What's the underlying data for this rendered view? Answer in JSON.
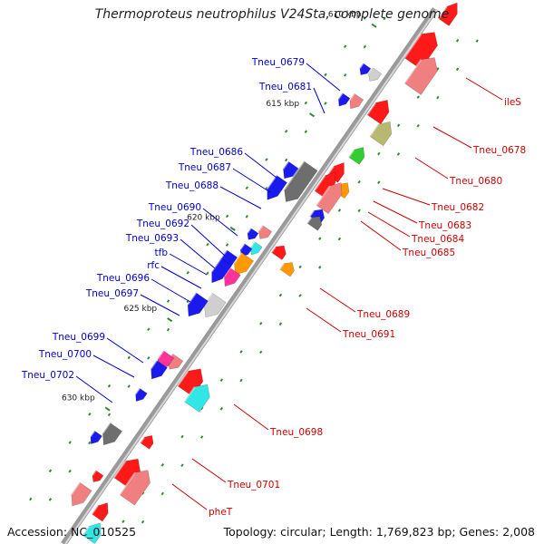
{
  "title": "Thermoproteus neutrophilus V24Sta, complete genome",
  "footer": {
    "accession": "Accession: NC_010525",
    "topology": "Topology: circular; Length: 1,769,823 bp; Genes: 2,008"
  },
  "colors": {
    "backbone": "#8a8a8a",
    "label_left": "#0000cc",
    "label_right": "#cc0000",
    "tick": "#2e8b2e",
    "red": "#ff1a1a",
    "blue": "#1a1aee",
    "salmon": "#f08080",
    "gray": "#6e6e6e",
    "lightgray": "#cfcfcf",
    "pink": "#ff3399",
    "orange": "#ff9900",
    "green": "#33cc33",
    "olive": "#b8b870",
    "cyan": "#33e6e6"
  },
  "kbp_markers": [
    "610 kbp",
    "615 kbp",
    "620 kbp",
    "625 kbp",
    "630 kbp"
  ],
  "labels_left": [
    "Tneu_0679",
    "Tneu_0681",
    "Tneu_0686",
    "Tneu_0687",
    "Tneu_0688",
    "Tneu_0690",
    "Tneu_0692",
    "Tneu_0693",
    "tfb",
    "rfc",
    "Tneu_0696",
    "Tneu_0697",
    "Tneu_0699",
    "Tneu_0700",
    "Tneu_0702"
  ],
  "labels_right": [
    "ileS",
    "Tneu_0678",
    "Tneu_0680",
    "Tneu_0682",
    "Tneu_0683",
    "Tneu_0684",
    "Tneu_0685",
    "Tneu_0689",
    "Tneu_0691",
    "Tneu_0698",
    "Tneu_0701",
    "pheT"
  ],
  "genes_plus": [
    {
      "color": "red"
    },
    {
      "color": "red"
    },
    {
      "color": "salmon"
    },
    {
      "color": "red"
    },
    {
      "color": "olive"
    },
    {
      "color": "green"
    },
    {
      "color": "red"
    },
    {
      "color": "orange"
    },
    {
      "color": "red"
    },
    {
      "color": "salmon"
    },
    {
      "color": "blue"
    },
    {
      "color": "gray"
    },
    {
      "color": "red"
    },
    {
      "color": "orange"
    },
    {
      "color": "red"
    },
    {
      "color": "cyan"
    },
    {
      "color": "red"
    },
    {
      "color": "red"
    },
    {
      "color": "salmon"
    },
    {
      "color": "red"
    },
    {
      "color": "cyan"
    }
  ],
  "genes_minus": [
    {
      "color": "lightgray"
    },
    {
      "color": "blue"
    },
    {
      "color": "salmon"
    },
    {
      "color": "blue"
    },
    {
      "color": "pink"
    },
    {
      "color": "blue"
    },
    {
      "color": "gray"
    },
    {
      "color": "blue"
    },
    {
      "color": "salmon"
    },
    {
      "color": "blue"
    },
    {
      "color": "cyan"
    },
    {
      "color": "blue"
    },
    {
      "color": "orange"
    },
    {
      "color": "blue"
    },
    {
      "color": "pink"
    },
    {
      "color": "blue"
    },
    {
      "color": "lightgray"
    },
    {
      "color": "blue"
    },
    {
      "color": "salmon"
    },
    {
      "color": "pink"
    },
    {
      "color": "blue"
    },
    {
      "color": "blue"
    },
    {
      "color": "gray"
    },
    {
      "color": "blue"
    },
    {
      "color": "red"
    },
    {
      "color": "salmon"
    }
  ]
}
